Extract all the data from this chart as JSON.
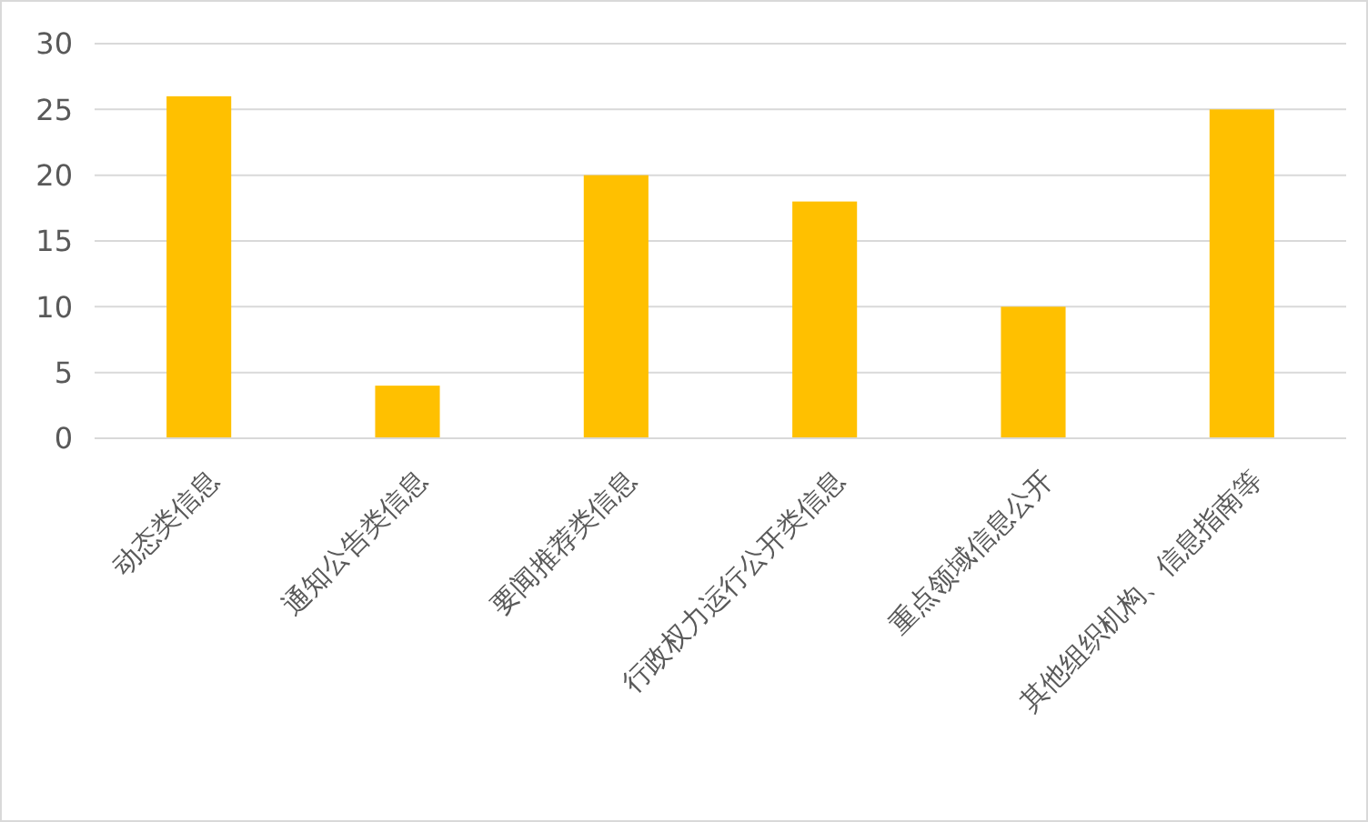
{
  "chart_data": {
    "type": "bar",
    "categories": [
      "动态类信息",
      "通知公告类信息",
      "要闻推荐类信息",
      "行政权力运行公开类信息",
      "重点领域信息公开",
      "其他组织机构、信息指南等"
    ],
    "values": [
      26,
      4,
      20,
      18,
      10,
      25
    ],
    "color": "#ffc000",
    "ylim": [
      0,
      30
    ],
    "yticks": [
      0,
      5,
      10,
      15,
      20,
      25,
      30
    ],
    "grid": "y"
  }
}
